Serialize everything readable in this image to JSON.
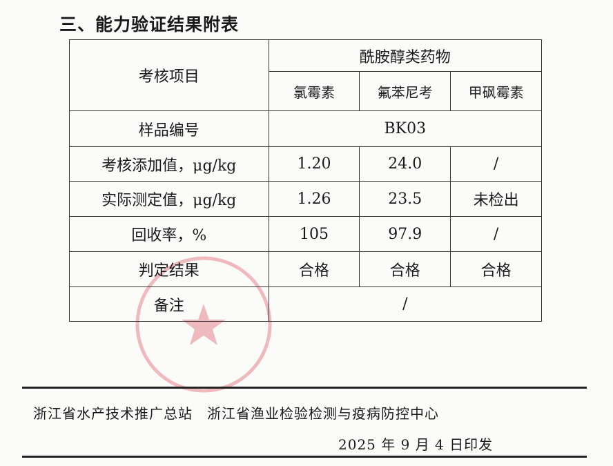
{
  "title": "三、能力验证结果附表",
  "table": {
    "item_header": "考核项目",
    "group_header": "酰胺醇类药物",
    "drugs": [
      "氯霉素",
      "氟苯尼考",
      "甲砜霉素"
    ],
    "sample_label": "样品编号",
    "sample_id": "BK03",
    "rows": [
      {
        "label": "考核添加值，μg/kg",
        "values": [
          "1.20",
          "24.0",
          "/"
        ]
      },
      {
        "label": "实际测定值，μg/kg",
        "values": [
          "1.26",
          "23.5",
          "未检出"
        ]
      },
      {
        "label": "回收率，%",
        "values": [
          "105",
          "97.9",
          "/"
        ]
      },
      {
        "label": "判定结果",
        "values": [
          "合格",
          "合格",
          "合格"
        ]
      }
    ],
    "remark_label": "备注",
    "remark_value": "/"
  },
  "footer": {
    "issuers": "浙江省水产技术推广总站　浙江省渔业检验检测与疫病防控中心",
    "date": "2025 年 9 月 4 日印发"
  },
  "seal_color": "#d9434f"
}
